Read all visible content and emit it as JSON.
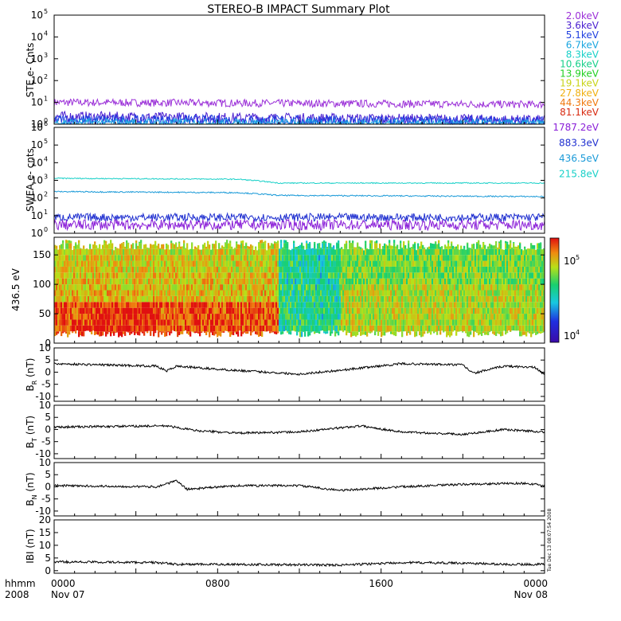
{
  "title": "STEREO-B IMPACT Summary Plot",
  "time_axis": {
    "corner_top": "hhmm",
    "corner_bottom": "2008",
    "ticks": [
      {
        "time": "0000",
        "date": "Nov 07",
        "hours": 0
      },
      {
        "time": "0800",
        "date": "",
        "hours": 8
      },
      {
        "time": "1600",
        "date": "",
        "hours": 16
      },
      {
        "time": "0000",
        "date": "Nov 08",
        "hours": 24
      }
    ],
    "range_hours": [
      0,
      24
    ]
  },
  "timestamp_label": "Tue Dec 13 08:07:54 2008",
  "ste_legend": [
    {
      "label": "2.0keV",
      "color": "#9b30d8"
    },
    {
      "label": "3.6keV",
      "color": "#4a1fd0"
    },
    {
      "label": "5.1keV",
      "color": "#1f3fe0"
    },
    {
      "label": "6.7keV",
      "color": "#1aa6e0"
    },
    {
      "label": "8.3keV",
      "color": "#18d0c8"
    },
    {
      "label": "10.6keV",
      "color": "#18d08a"
    },
    {
      "label": "13.9keV",
      "color": "#22d022"
    },
    {
      "label": "19.1keV",
      "color": "#c8d418"
    },
    {
      "label": "27.8keV",
      "color": "#f0b010"
    },
    {
      "label": "44.3keV",
      "color": "#f07a10"
    },
    {
      "label": "81.1keV",
      "color": "#d82a10"
    }
  ],
  "swea_legend": [
    {
      "label": "1787.2eV",
      "color": "#8a1fd8"
    },
    {
      "label": "883.3eV",
      "color": "#1f2fd0"
    },
    {
      "label": "436.5eV",
      "color": "#1a9ad8"
    },
    {
      "label": "215.8eV",
      "color": "#18d0c8"
    }
  ],
  "colorbar": {
    "labels": [
      {
        "text": "10",
        "sup": "5",
        "value": 100000
      },
      {
        "text": "10",
        "sup": "4",
        "value": 10000
      }
    ],
    "range": [
      8000,
      200000
    ]
  },
  "chart_data": [
    {
      "type": "line",
      "name": "ste",
      "ylabel": "STE e- Cnts",
      "yscale": "log",
      "ylim": [
        1,
        100000
      ],
      "yticks": [
        {
          "base": "10",
          "exp": "0",
          "value": 1
        },
        {
          "base": "10",
          "exp": "1",
          "value": 10
        },
        {
          "base": "10",
          "exp": "2",
          "value": 100
        },
        {
          "base": "10",
          "exp": "3",
          "value": 1000
        },
        {
          "base": "10",
          "exp": "4",
          "value": 10000
        },
        {
          "base": "10",
          "exp": "5",
          "value": 100000
        }
      ],
      "series": [
        {
          "color": "#9b30d8",
          "base": 10,
          "noise": 0.35,
          "trend": [
            [
              0,
              10
            ],
            [
              24,
              8
            ]
          ]
        },
        {
          "color": "#4a1fd0",
          "base": 1.8,
          "noise": 0.5,
          "trend": [
            [
              0,
              2.2
            ],
            [
              24,
              1.5
            ]
          ]
        },
        {
          "color": "#1f3fe0",
          "base": 1.4,
          "noise": 0.5,
          "trend": [
            [
              0,
              1.6
            ],
            [
              24,
              1.3
            ]
          ]
        },
        {
          "color": "#1aa6e0",
          "base": 1.1,
          "noise": 0.4,
          "trend": [
            [
              0,
              1.2
            ],
            [
              24,
              1.05
            ]
          ]
        }
      ]
    },
    {
      "type": "line",
      "name": "swea",
      "ylabel": "SWEA e- cnts",
      "yscale": "log",
      "ylim": [
        1,
        1000000
      ],
      "yticks": [
        {
          "base": "10",
          "exp": "0",
          "value": 1
        },
        {
          "base": "10",
          "exp": "1",
          "value": 10
        },
        {
          "base": "10",
          "exp": "2",
          "value": 100
        },
        {
          "base": "10",
          "exp": "3",
          "value": 1000
        },
        {
          "base": "10",
          "exp": "4",
          "value": 10000
        },
        {
          "base": "10",
          "exp": "5",
          "value": 100000
        },
        {
          "base": "10",
          "exp": "6",
          "value": 1000000
        }
      ],
      "series": [
        {
          "color": "#18d0c8",
          "noise": 0.06,
          "trend": [
            [
              0,
              1300
            ],
            [
              9,
              1150
            ],
            [
              11,
              700
            ],
            [
              24,
              700
            ]
          ]
        },
        {
          "color": "#1a9ad8",
          "noise": 0.07,
          "trend": [
            [
              0,
              230
            ],
            [
              9,
              200
            ],
            [
              11,
              140
            ],
            [
              24,
              120
            ]
          ]
        },
        {
          "color": "#1f2fd0",
          "noise": 0.45,
          "trend": [
            [
              0,
              8
            ],
            [
              24,
              8
            ]
          ]
        },
        {
          "color": "#8a1fd8",
          "noise": 0.6,
          "trend": [
            [
              0,
              3
            ],
            [
              24,
              3
            ]
          ]
        }
      ]
    },
    {
      "type": "heatmap",
      "name": "pad",
      "ylabel": "436.5 eV",
      "ylim": [
        0,
        180
      ],
      "yticks": [
        0,
        50,
        100,
        150
      ],
      "zscale": "log",
      "zrange": [
        8000,
        200000
      ]
    },
    {
      "type": "line",
      "name": "br",
      "ylabel": "B",
      "ylabel_sub": "R",
      "ylabel_unit": "(nT)",
      "ylim": [
        -12,
        10
      ],
      "yticks": [
        -10,
        -5,
        0,
        5,
        10
      ],
      "color": "#000000",
      "trend": [
        [
          0,
          3.5
        ],
        [
          5,
          2.5
        ],
        [
          5.5,
          0.5
        ],
        [
          6,
          2.5
        ],
        [
          8,
          1.2
        ],
        [
          12,
          -0.8
        ],
        [
          14,
          0.8
        ],
        [
          17,
          3.5
        ],
        [
          20,
          3
        ],
        [
          20.5,
          -0.5
        ],
        [
          22,
          2.5
        ],
        [
          23.5,
          2
        ],
        [
          24,
          -1
        ]
      ]
    },
    {
      "type": "line",
      "name": "bt",
      "ylabel": "B",
      "ylabel_sub": "T",
      "ylabel_unit": "(nT)",
      "ylim": [
        -12,
        10
      ],
      "yticks": [
        -10,
        -5,
        0,
        5,
        10
      ],
      "color": "#000000",
      "trend": [
        [
          0,
          1
        ],
        [
          5.5,
          1.5
        ],
        [
          7,
          -0.5
        ],
        [
          9,
          -1.5
        ],
        [
          12,
          -1
        ],
        [
          15,
          1.5
        ],
        [
          17,
          -1
        ],
        [
          20,
          -2
        ],
        [
          22,
          0
        ],
        [
          24,
          -1
        ]
      ]
    },
    {
      "type": "line",
      "name": "bn",
      "ylabel": "B",
      "ylabel_sub": "N",
      "ylabel_unit": "(nT)",
      "ylim": [
        -12,
        10
      ],
      "yticks": [
        -10,
        -5,
        0,
        5,
        10
      ],
      "color": "#000000",
      "trend": [
        [
          0,
          0.5
        ],
        [
          5,
          0
        ],
        [
          6,
          2.5
        ],
        [
          6.5,
          -1
        ],
        [
          9,
          0.5
        ],
        [
          12,
          0.5
        ],
        [
          14,
          -1.5
        ],
        [
          17,
          0
        ],
        [
          20,
          1
        ],
        [
          23,
          1.5
        ],
        [
          24,
          0.5
        ]
      ]
    },
    {
      "type": "line",
      "name": "bmag",
      "ylabel": "IBI (nT)",
      "ylim": [
        -1,
        20
      ],
      "yticks": [
        0,
        5,
        10,
        15,
        20
      ],
      "color": "#000000",
      "trend": [
        [
          0,
          3.5
        ],
        [
          5,
          3.2
        ],
        [
          6,
          2.5
        ],
        [
          9,
          2.5
        ],
        [
          14,
          2.2
        ],
        [
          17,
          3.2
        ],
        [
          20,
          3
        ],
        [
          22,
          2.5
        ],
        [
          24,
          2.5
        ]
      ]
    }
  ]
}
